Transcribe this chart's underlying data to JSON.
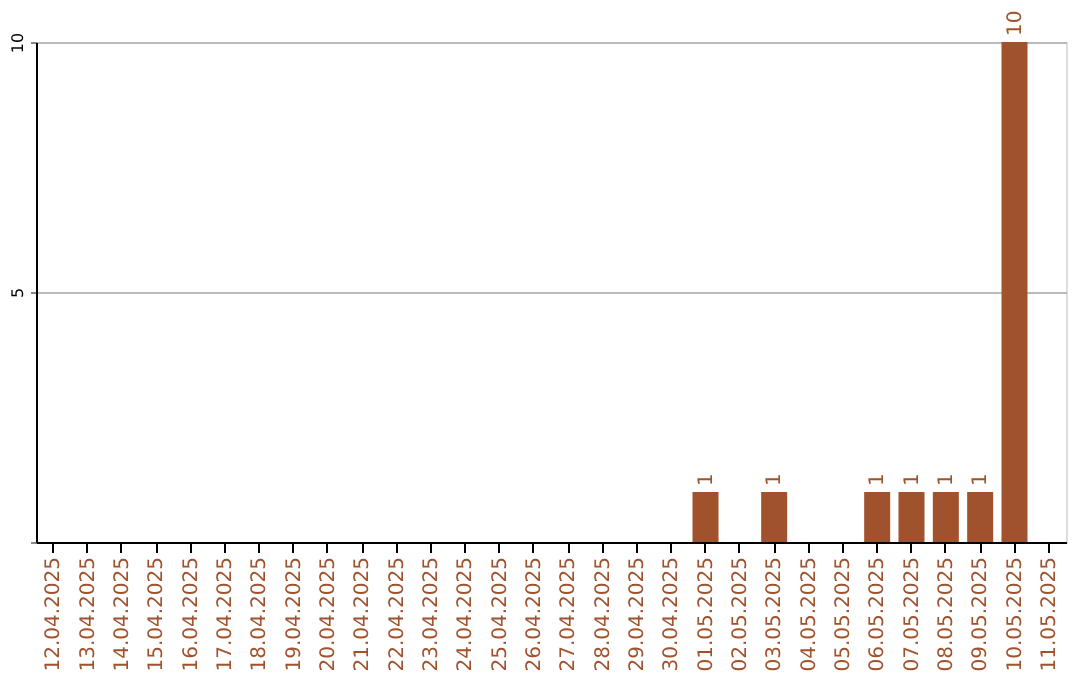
{
  "chart_data": {
    "type": "bar",
    "categories": [
      "12.04.2025",
      "13.04.2025",
      "14.04.2025",
      "15.04.2025",
      "16.04.2025",
      "17.04.2025",
      "18.04.2025",
      "19.04.2025",
      "20.04.2025",
      "21.04.2025",
      "22.04.2025",
      "23.04.2025",
      "24.04.2025",
      "25.04.2025",
      "26.04.2025",
      "27.04.2025",
      "28.04.2025",
      "29.04.2025",
      "30.04.2025",
      "01.05.2025",
      "02.05.2025",
      "03.05.2025",
      "04.05.2025",
      "05.05.2025",
      "06.05.2025",
      "07.05.2025",
      "08.05.2025",
      "09.05.2025",
      "10.05.2025",
      "11.05.2025"
    ],
    "values": [
      0,
      0,
      0,
      0,
      0,
      0,
      0,
      0,
      0,
      0,
      0,
      0,
      0,
      0,
      0,
      0,
      0,
      0,
      0,
      1,
      0,
      1,
      0,
      0,
      1,
      1,
      1,
      1,
      10,
      0
    ],
    "value_labels": [
      null,
      null,
      null,
      null,
      null,
      null,
      null,
      null,
      null,
      null,
      null,
      null,
      null,
      null,
      null,
      null,
      null,
      null,
      null,
      "1",
      null,
      "1",
      null,
      null,
      "1",
      "1",
      "1",
      "1",
      "10",
      null
    ],
    "color": "#a0522d",
    "ylim": [
      0,
      10
    ],
    "yticks": [
      {
        "value": 0,
        "label": null
      },
      5,
      10
    ],
    "grid": "y"
  }
}
